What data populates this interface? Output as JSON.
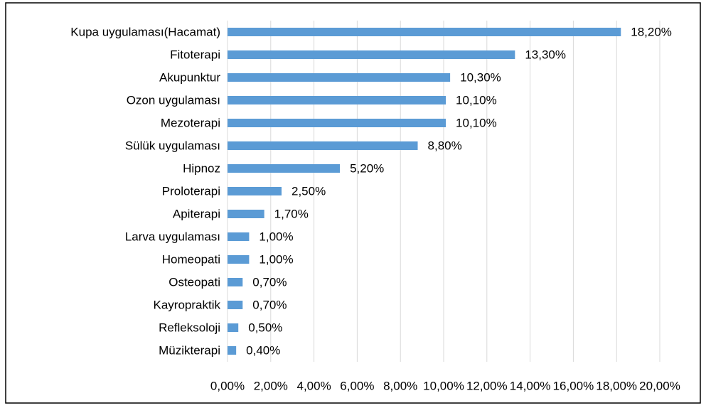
{
  "chart_data": {
    "type": "bar",
    "orientation": "horizontal",
    "categories": [
      "Kupa uygulaması(Hacamat)",
      "Fitoterapi",
      "Akupunktur",
      "Ozon uygulaması",
      "Mezoterapi",
      "Sülük uygulaması",
      "Hipnoz",
      "Proloterapi",
      "Apiterapi",
      "Larva uygulaması",
      "Homeopati",
      "Osteopati",
      "Kayropraktik",
      "Refleksoloji",
      "Müzikterapi"
    ],
    "values": [
      18.2,
      13.3,
      10.3,
      10.1,
      10.1,
      8.8,
      5.2,
      2.5,
      1.7,
      1.0,
      1.0,
      0.7,
      0.7,
      0.5,
      0.4
    ],
    "value_labels": [
      "18,20%",
      "13,30%",
      "10,30%",
      "10,10%",
      "10,10%",
      "8,80%",
      "5,20%",
      "2,50%",
      "1,70%",
      "1,00%",
      "1,00%",
      "0,70%",
      "0,70%",
      "0,50%",
      "0,40%"
    ],
    "color": "#5b9bd5",
    "xlim": [
      0,
      20
    ],
    "xticks": [
      {
        "value": 0,
        "label": "0,00%"
      },
      {
        "value": 2,
        "label": "2,00%"
      },
      {
        "value": 4,
        "label": "4,00%"
      },
      {
        "value": 6,
        "label": "6,00%"
      },
      {
        "value": 8,
        "label": "8,00%"
      },
      {
        "value": 10,
        "label": "10,00%"
      },
      {
        "value": 12,
        "label": "12,00%"
      },
      {
        "value": 14,
        "label": "14,00%"
      },
      {
        "value": 16,
        "label": "16,00%"
      },
      {
        "value": 18,
        "label": "18,00%"
      },
      {
        "value": 20,
        "label": "20,00%"
      }
    ],
    "grid": true
  }
}
